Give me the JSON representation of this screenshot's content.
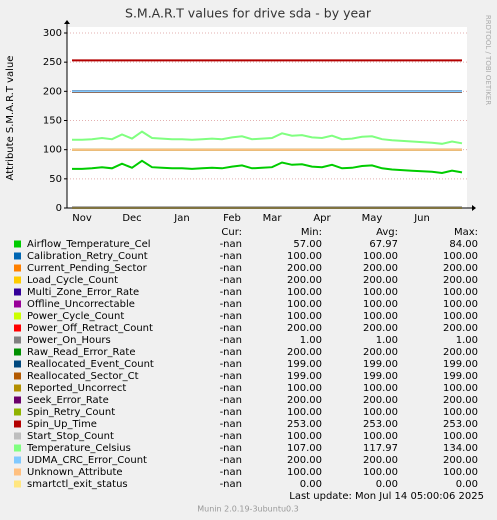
{
  "chart_data": {
    "type": "line",
    "title": "S.M.A.R.T values for drive sda - by year",
    "ylabel": "Attribute S.M.A.R.T value",
    "watermark": "RRDTOOL / TOBI OETIKER",
    "ylim": [
      0,
      310
    ],
    "yticks": [
      0,
      50,
      100,
      150,
      200,
      250,
      300
    ],
    "grid": true,
    "categories": [
      null,
      "Nov",
      null,
      null,
      null,
      null,
      "Dec",
      null,
      null,
      null,
      null,
      "Jan",
      null,
      null,
      null,
      null,
      "Feb",
      null,
      null,
      null,
      "Mar",
      null,
      null,
      null,
      null,
      "Apr",
      null,
      null,
      null,
      null,
      "May",
      null,
      null,
      null,
      null,
      "Jun",
      null,
      null,
      null,
      null
    ],
    "stat_headers": [
      "Cur:",
      "Min:",
      "Avg:",
      "Max:"
    ],
    "series": [
      {
        "name": "Airflow_Temperature_Cel",
        "color": "#00cc00",
        "cur": "-nan",
        "min": "57.00",
        "avg": "67.97",
        "max": "84.00",
        "values": [
          67,
          67,
          68,
          70,
          68,
          76,
          69,
          81,
          70,
          69,
          68,
          68,
          67,
          68,
          69,
          68,
          71,
          73,
          68,
          69,
          70,
          78,
          74,
          75,
          71,
          70,
          74,
          68,
          69,
          72,
          73,
          68,
          66,
          65,
          64,
          63,
          62,
          60,
          64,
          61
        ]
      },
      {
        "name": "Calibration_Retry_Count",
        "color": "#0066b3",
        "cur": "-nan",
        "min": "100.00",
        "avg": "100.00",
        "max": "100.00",
        "values": [
          100,
          100,
          100,
          100,
          100,
          100,
          100,
          100,
          100,
          100,
          100,
          100,
          100,
          100,
          100,
          100,
          100,
          100,
          100,
          100,
          100,
          100,
          100,
          100,
          100,
          100,
          100,
          100,
          100,
          100,
          100,
          100,
          100,
          100,
          100,
          100,
          100,
          100,
          100,
          100
        ]
      },
      {
        "name": "Current_Pending_Sector",
        "color": "#ff8000",
        "cur": "-nan",
        "min": "200.00",
        "avg": "200.00",
        "max": "200.00",
        "values": [
          200,
          200,
          200,
          200,
          200,
          200,
          200,
          200,
          200,
          200,
          200,
          200,
          200,
          200,
          200,
          200,
          200,
          200,
          200,
          200,
          200,
          200,
          200,
          200,
          200,
          200,
          200,
          200,
          200,
          200,
          200,
          200,
          200,
          200,
          200,
          200,
          200,
          200,
          200,
          200
        ]
      },
      {
        "name": "Load_Cycle_Count",
        "color": "#ffcc00",
        "cur": "-nan",
        "min": "200.00",
        "avg": "200.00",
        "max": "200.00",
        "values": [
          200,
          200,
          200,
          200,
          200,
          200,
          200,
          200,
          200,
          200,
          200,
          200,
          200,
          200,
          200,
          200,
          200,
          200,
          200,
          200,
          200,
          200,
          200,
          200,
          200,
          200,
          200,
          200,
          200,
          200,
          200,
          200,
          200,
          200,
          200,
          200,
          200,
          200,
          200,
          200
        ]
      },
      {
        "name": "Multi_Zone_Error_Rate",
        "color": "#330099",
        "cur": "-nan",
        "min": "100.00",
        "avg": "100.00",
        "max": "100.00",
        "values": [
          100,
          100,
          100,
          100,
          100,
          100,
          100,
          100,
          100,
          100,
          100,
          100,
          100,
          100,
          100,
          100,
          100,
          100,
          100,
          100,
          100,
          100,
          100,
          100,
          100,
          100,
          100,
          100,
          100,
          100,
          100,
          100,
          100,
          100,
          100,
          100,
          100,
          100,
          100,
          100
        ]
      },
      {
        "name": "Offline_Uncorrectable",
        "color": "#990099",
        "cur": "-nan",
        "min": "100.00",
        "avg": "100.00",
        "max": "100.00",
        "values": [
          100,
          100,
          100,
          100,
          100,
          100,
          100,
          100,
          100,
          100,
          100,
          100,
          100,
          100,
          100,
          100,
          100,
          100,
          100,
          100,
          100,
          100,
          100,
          100,
          100,
          100,
          100,
          100,
          100,
          100,
          100,
          100,
          100,
          100,
          100,
          100,
          100,
          100,
          100,
          100
        ]
      },
      {
        "name": "Power_Cycle_Count",
        "color": "#ccff00",
        "cur": "-nan",
        "min": "100.00",
        "avg": "100.00",
        "max": "100.00",
        "values": [
          100,
          100,
          100,
          100,
          100,
          100,
          100,
          100,
          100,
          100,
          100,
          100,
          100,
          100,
          100,
          100,
          100,
          100,
          100,
          100,
          100,
          100,
          100,
          100,
          100,
          100,
          100,
          100,
          100,
          100,
          100,
          100,
          100,
          100,
          100,
          100,
          100,
          100,
          100,
          100
        ]
      },
      {
        "name": "Power_Off_Retract_Count",
        "color": "#ff0000",
        "cur": "-nan",
        "min": "200.00",
        "avg": "200.00",
        "max": "200.00",
        "values": [
          200,
          200,
          200,
          200,
          200,
          200,
          200,
          200,
          200,
          200,
          200,
          200,
          200,
          200,
          200,
          200,
          200,
          200,
          200,
          200,
          200,
          200,
          200,
          200,
          200,
          200,
          200,
          200,
          200,
          200,
          200,
          200,
          200,
          200,
          200,
          200,
          200,
          200,
          200,
          200
        ]
      },
      {
        "name": "Power_On_Hours",
        "color": "#808080",
        "cur": "-nan",
        "min": "1.00",
        "avg": "1.00",
        "max": "1.00",
        "values": [
          1,
          1,
          1,
          1,
          1,
          1,
          1,
          1,
          1,
          1,
          1,
          1,
          1,
          1,
          1,
          1,
          1,
          1,
          1,
          1,
          1,
          1,
          1,
          1,
          1,
          1,
          1,
          1,
          1,
          1,
          1,
          1,
          1,
          1,
          1,
          1,
          1,
          1,
          1,
          1
        ]
      },
      {
        "name": "Raw_Read_Error_Rate",
        "color": "#008f00",
        "cur": "-nan",
        "min": "200.00",
        "avg": "200.00",
        "max": "200.00",
        "values": [
          200,
          200,
          200,
          200,
          200,
          200,
          200,
          200,
          200,
          200,
          200,
          200,
          200,
          200,
          200,
          200,
          200,
          200,
          200,
          200,
          200,
          200,
          200,
          200,
          200,
          200,
          200,
          200,
          200,
          200,
          200,
          200,
          200,
          200,
          200,
          200,
          200,
          200,
          200,
          200
        ]
      },
      {
        "name": "Reallocated_Event_Count",
        "color": "#00487d",
        "cur": "-nan",
        "min": "199.00",
        "avg": "199.00",
        "max": "199.00",
        "values": [
          199,
          199,
          199,
          199,
          199,
          199,
          199,
          199,
          199,
          199,
          199,
          199,
          199,
          199,
          199,
          199,
          199,
          199,
          199,
          199,
          199,
          199,
          199,
          199,
          199,
          199,
          199,
          199,
          199,
          199,
          199,
          199,
          199,
          199,
          199,
          199,
          199,
          199,
          199,
          199
        ]
      },
      {
        "name": "Reallocated_Sector_Ct",
        "color": "#b35a00",
        "cur": "-nan",
        "min": "199.00",
        "avg": "199.00",
        "max": "199.00",
        "values": [
          199,
          199,
          199,
          199,
          199,
          199,
          199,
          199,
          199,
          199,
          199,
          199,
          199,
          199,
          199,
          199,
          199,
          199,
          199,
          199,
          199,
          199,
          199,
          199,
          199,
          199,
          199,
          199,
          199,
          199,
          199,
          199,
          199,
          199,
          199,
          199,
          199,
          199,
          199,
          199
        ]
      },
      {
        "name": "Reported_Uncorrect",
        "color": "#b38f00",
        "cur": "-nan",
        "min": "100.00",
        "avg": "100.00",
        "max": "100.00",
        "values": [
          100,
          100,
          100,
          100,
          100,
          100,
          100,
          100,
          100,
          100,
          100,
          100,
          100,
          100,
          100,
          100,
          100,
          100,
          100,
          100,
          100,
          100,
          100,
          100,
          100,
          100,
          100,
          100,
          100,
          100,
          100,
          100,
          100,
          100,
          100,
          100,
          100,
          100,
          100,
          100
        ]
      },
      {
        "name": "Seek_Error_Rate",
        "color": "#6b006b",
        "cur": "-nan",
        "min": "200.00",
        "avg": "200.00",
        "max": "200.00",
        "values": [
          200,
          200,
          200,
          200,
          200,
          200,
          200,
          200,
          200,
          200,
          200,
          200,
          200,
          200,
          200,
          200,
          200,
          200,
          200,
          200,
          200,
          200,
          200,
          200,
          200,
          200,
          200,
          200,
          200,
          200,
          200,
          200,
          200,
          200,
          200,
          200,
          200,
          200,
          200,
          200
        ]
      },
      {
        "name": "Spin_Retry_Count",
        "color": "#8fb300",
        "cur": "-nan",
        "min": "100.00",
        "avg": "100.00",
        "max": "100.00",
        "values": [
          100,
          100,
          100,
          100,
          100,
          100,
          100,
          100,
          100,
          100,
          100,
          100,
          100,
          100,
          100,
          100,
          100,
          100,
          100,
          100,
          100,
          100,
          100,
          100,
          100,
          100,
          100,
          100,
          100,
          100,
          100,
          100,
          100,
          100,
          100,
          100,
          100,
          100,
          100,
          100
        ]
      },
      {
        "name": "Spin_Up_Time",
        "color": "#b30000",
        "cur": "-nan",
        "min": "253.00",
        "avg": "253.00",
        "max": "253.00",
        "values": [
          253,
          253,
          253,
          253,
          253,
          253,
          253,
          253,
          253,
          253,
          253,
          253,
          253,
          253,
          253,
          253,
          253,
          253,
          253,
          253,
          253,
          253,
          253,
          253,
          253,
          253,
          253,
          253,
          253,
          253,
          253,
          253,
          253,
          253,
          253,
          253,
          253,
          253,
          253,
          253
        ]
      },
      {
        "name": "Start_Stop_Count",
        "color": "#bebebe",
        "cur": "-nan",
        "min": "100.00",
        "avg": "100.00",
        "max": "100.00",
        "values": [
          100,
          100,
          100,
          100,
          100,
          100,
          100,
          100,
          100,
          100,
          100,
          100,
          100,
          100,
          100,
          100,
          100,
          100,
          100,
          100,
          100,
          100,
          100,
          100,
          100,
          100,
          100,
          100,
          100,
          100,
          100,
          100,
          100,
          100,
          100,
          100,
          100,
          100,
          100,
          100
        ]
      },
      {
        "name": "Temperature_Celsius",
        "color": "#80ff80",
        "cur": "-nan",
        "min": "107.00",
        "avg": "117.97",
        "max": "134.00",
        "values": [
          117,
          117,
          118,
          120,
          118,
          126,
          119,
          131,
          120,
          119,
          118,
          118,
          117,
          118,
          119,
          118,
          121,
          123,
          118,
          119,
          120,
          128,
          124,
          125,
          121,
          120,
          124,
          118,
          119,
          122,
          123,
          118,
          116,
          115,
          114,
          113,
          112,
          110,
          114,
          111
        ]
      },
      {
        "name": "UDMA_CRC_Error_Count",
        "color": "#80c9ff",
        "cur": "-nan",
        "min": "200.00",
        "avg": "200.00",
        "max": "200.00",
        "values": [
          200,
          200,
          200,
          200,
          200,
          200,
          200,
          200,
          200,
          200,
          200,
          200,
          200,
          200,
          200,
          200,
          200,
          200,
          200,
          200,
          200,
          200,
          200,
          200,
          200,
          200,
          200,
          200,
          200,
          200,
          200,
          200,
          200,
          200,
          200,
          200,
          200,
          200,
          200,
          200
        ]
      },
      {
        "name": "Unknown_Attribute",
        "color": "#ffc080",
        "cur": "-nan",
        "min": "100.00",
        "avg": "100.00",
        "max": "100.00",
        "values": [
          100,
          100,
          100,
          100,
          100,
          100,
          100,
          100,
          100,
          100,
          100,
          100,
          100,
          100,
          100,
          100,
          100,
          100,
          100,
          100,
          100,
          100,
          100,
          100,
          100,
          100,
          100,
          100,
          100,
          100,
          100,
          100,
          100,
          100,
          100,
          100,
          100,
          100,
          100,
          100
        ]
      },
      {
        "name": "smartctl_exit_status",
        "color": "#ffe680",
        "cur": "-nan",
        "min": "0.00",
        "avg": "0.00",
        "max": "0.00",
        "values": [
          0,
          0,
          0,
          0,
          0,
          0,
          0,
          0,
          0,
          0,
          0,
          0,
          0,
          0,
          0,
          0,
          0,
          0,
          0,
          0,
          0,
          0,
          0,
          0,
          0,
          0,
          0,
          0,
          0,
          0,
          0,
          0,
          0,
          0,
          0,
          0,
          0,
          0,
          0,
          0
        ]
      }
    ],
    "last_update": "Last update:  Mon Jul 14 05:00:06 2025",
    "footer": "Munin 2.0.19-3ubuntu0.3"
  }
}
